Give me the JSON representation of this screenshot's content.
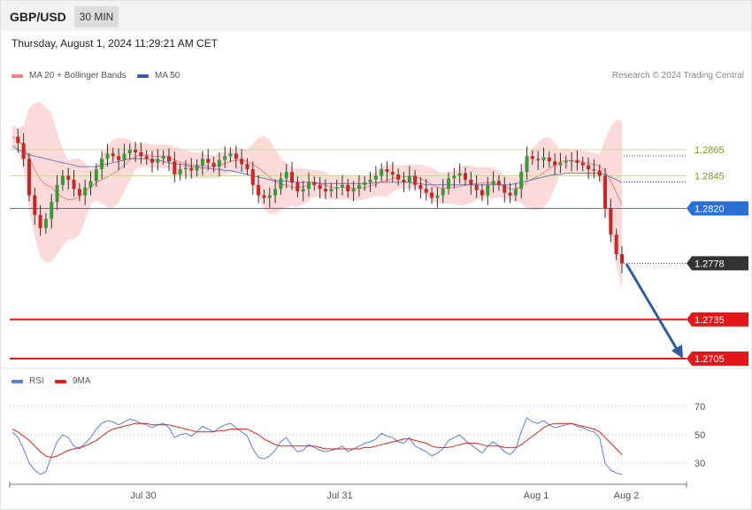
{
  "header": {
    "symbol": "GBP/USD",
    "timeframe": "30 MIN"
  },
  "datetime": "Thursday, August 1, 2024 11:29:21 AM CET",
  "legend": [
    {
      "label": "MA 20 + Bollinger Bands",
      "color": "#f08080"
    },
    {
      "label": "MA 50",
      "color": "#3a5fa0"
    }
  ],
  "credit": "Research © 2024 Trading Central",
  "rsi_legend": [
    {
      "label": "RSI",
      "color": "#5b7fd6"
    },
    {
      "label": "9MA",
      "color": "#e0201a"
    }
  ],
  "chart_data": [
    {
      "type": "candlestick",
      "title": "GBP/USD",
      "ylim": [
        1.2695,
        1.2895
      ],
      "levels": [
        {
          "value": 1.2865,
          "label": "1.2865",
          "color": "#c8d9a0",
          "kind": "resistance"
        },
        {
          "value": 1.2845,
          "label": "1.2845",
          "color": "#c8d9a0",
          "kind": "resistance"
        },
        {
          "value": 1.282,
          "label": "1.2820",
          "color": "#2a6fd6",
          "kind": "pivot"
        },
        {
          "value": 1.2778,
          "label": "1.2778",
          "color": "#333333",
          "kind": "last"
        },
        {
          "value": 1.2735,
          "label": "1.2735",
          "color": "#e5161a",
          "kind": "support"
        },
        {
          "value": 1.2705,
          "label": "1.2705",
          "color": "#e5161a",
          "kind": "support"
        }
      ],
      "close_series": [
        1.2875,
        1.287,
        1.2858,
        1.283,
        1.2815,
        1.2805,
        1.2812,
        1.2825,
        1.2838,
        1.2845,
        1.2842,
        1.2835,
        1.283,
        1.2836,
        1.2841,
        1.285,
        1.2858,
        1.2862,
        1.286,
        1.2857,
        1.2862,
        1.2865,
        1.2863,
        1.286,
        1.2858,
        1.2855,
        1.2858,
        1.286,
        1.2856,
        1.2846,
        1.285,
        1.2851,
        1.2849,
        1.2853,
        1.2858,
        1.2855,
        1.2852,
        1.2857,
        1.286,
        1.2862,
        1.2858,
        1.2854,
        1.285,
        1.2838,
        1.283,
        1.2828,
        1.283,
        1.2835,
        1.2843,
        1.2848,
        1.284,
        1.2833,
        1.2835,
        1.284,
        1.2838,
        1.2835,
        1.2833,
        1.2835,
        1.2836,
        1.2838,
        1.2833,
        1.2835,
        1.2838,
        1.284,
        1.2842,
        1.2845,
        1.285,
        1.2848,
        1.2846,
        1.2842,
        1.284,
        1.2845,
        1.2838,
        1.2835,
        1.2832,
        1.2828,
        1.283,
        1.2835,
        1.2843,
        1.2845,
        1.2847,
        1.2842,
        1.2838,
        1.2834,
        1.283,
        1.2838,
        1.2841,
        1.2838,
        1.2832,
        1.283,
        1.2835,
        1.2848,
        1.286,
        1.2858,
        1.2857,
        1.2859,
        1.2856,
        1.2853,
        1.2855,
        1.2856,
        1.2857,
        1.2855,
        1.2853,
        1.285,
        1.2849,
        1.2845,
        1.282,
        1.28,
        1.2785,
        1.2778
      ],
      "ma50": [
        1.2868,
        1.2865,
        1.2863,
        1.2861,
        1.286,
        1.2859,
        1.2858,
        1.2857,
        1.2856,
        1.2855,
        1.2854,
        1.2853,
        1.2852,
        1.2852,
        1.2852,
        1.2852,
        1.2853,
        1.2854,
        1.2855,
        1.2856,
        1.2857,
        1.2858,
        1.2858,
        1.2858,
        1.2858,
        1.2857,
        1.2857,
        1.2856,
        1.2855,
        1.2854,
        1.2854,
        1.2853,
        1.2852,
        1.2852,
        1.2851,
        1.2851,
        1.285,
        1.285,
        1.2849,
        1.2849,
        1.2848,
        1.2847,
        1.2846,
        1.2845,
        1.2844,
        1.2843,
        1.2842,
        1.2841,
        1.2841,
        1.2841,
        1.284,
        1.284,
        1.284,
        1.284,
        1.284,
        1.2839,
        1.2839,
        1.2839,
        1.2839,
        1.2839,
        1.2839,
        1.2839,
        1.2839,
        1.2839,
        1.2839,
        1.284,
        1.284,
        1.284,
        1.284,
        1.284,
        1.284,
        1.284,
        1.2839,
        1.2839,
        1.2838,
        1.2838,
        1.2838,
        1.2838,
        1.2838,
        1.2838,
        1.2838,
        1.2838,
        1.2838,
        1.2838,
        1.2838,
        1.2838,
        1.2838,
        1.2838,
        1.2838,
        1.2838,
        1.2839,
        1.284,
        1.2841,
        1.2842,
        1.2843,
        1.2844,
        1.2845,
        1.2846,
        1.2846,
        1.2847,
        1.2847,
        1.2847,
        1.2847,
        1.2847,
        1.2847,
        1.2847,
        1.2846,
        1.2844,
        1.2842,
        1.284
      ],
      "x_ticks": [
        "Jul 30",
        "Jul 31",
        "Aug 1",
        "Aug 2"
      ]
    },
    {
      "type": "line",
      "title": "RSI",
      "ylim": [
        20,
        80
      ],
      "yticks": [
        70,
        50,
        30
      ],
      "series": [
        {
          "name": "RSI",
          "color": "#5b7fd6",
          "values": [
            52,
            48,
            40,
            30,
            25,
            22,
            24,
            35,
            45,
            50,
            48,
            42,
            40,
            44,
            48,
            54,
            58,
            60,
            59,
            57,
            59,
            61,
            60,
            58,
            57,
            55,
            57,
            58,
            55,
            48,
            50,
            51,
            49,
            52,
            56,
            54,
            52,
            55,
            57,
            58,
            55,
            52,
            49,
            40,
            34,
            33,
            35,
            39,
            45,
            48,
            42,
            38,
            39,
            43,
            41,
            39,
            38,
            39,
            40,
            42,
            38,
            40,
            42,
            44,
            45,
            47,
            51,
            49,
            48,
            45,
            44,
            48,
            42,
            40,
            38,
            35,
            37,
            40,
            46,
            48,
            50,
            46,
            43,
            40,
            37,
            42,
            45,
            42,
            38,
            36,
            40,
            52,
            62,
            59,
            58,
            60,
            57,
            55,
            56,
            57,
            58,
            56,
            55,
            53,
            52,
            48,
            30,
            25,
            23,
            22
          ]
        },
        {
          "name": "9MA",
          "color": "#e0201a",
          "values": [
            54,
            52,
            49,
            46,
            42,
            38,
            35,
            34,
            35,
            37,
            39,
            40,
            41,
            42,
            44,
            46,
            49,
            52,
            54,
            55,
            56,
            57,
            58,
            58,
            58,
            57,
            57,
            57,
            57,
            56,
            55,
            54,
            53,
            52,
            52,
            52,
            52,
            53,
            53,
            54,
            54,
            54,
            54,
            52,
            50,
            47,
            45,
            43,
            42,
            42,
            42,
            42,
            42,
            42,
            42,
            41,
            40,
            40,
            40,
            40,
            40,
            40,
            40,
            41,
            41,
            42,
            43,
            44,
            45,
            46,
            47,
            47,
            46,
            45,
            44,
            42,
            41,
            41,
            41,
            42,
            43,
            44,
            44,
            44,
            43,
            42,
            42,
            42,
            41,
            41,
            41,
            43,
            46,
            49,
            52,
            55,
            57,
            58,
            58,
            58,
            58,
            57,
            56,
            55,
            54,
            52,
            48,
            44,
            40,
            36
          ]
        }
      ]
    }
  ]
}
